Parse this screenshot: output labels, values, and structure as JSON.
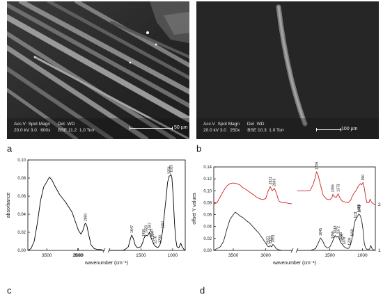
{
  "panels": {
    "a": {
      "letter": "a",
      "info_header": "Acc.V  Spot Magn      Det  WD",
      "info_values": "20.0 kV 3.0   600x      BSE 11.2  1.0 Torr",
      "scale_label": "50 µm"
    },
    "b": {
      "letter": "b",
      "info_header": "Acc.V  Spot Magn      Det  WD",
      "info_values": "20.0 kV 3.0   250x      BSE 10.3  1.0 Torr",
      "scale_label": "100 µm"
    },
    "c": {
      "letter": "c"
    },
    "d": {
      "letter": "d"
    }
  },
  "chart_data": [
    {
      "type": "line",
      "panel": "c",
      "xlabel": "wavenumber (cm⁻¹)",
      "ylabel": "absorbance",
      "xlim": [
        3800,
        800
      ],
      "ylim": [
        0,
        0.1
      ],
      "x_ticks": [
        3500,
        3000,
        2500,
        1500,
        1000
      ],
      "y_ticks": [
        "0.00",
        "0.02",
        "0.04",
        "0.06",
        "0.08",
        "0.10"
      ],
      "axis_break": [
        2600,
        2000
      ],
      "peak_labels": [
        "2890",
        "1647",
        "1456",
        "1420",
        "1367",
        "1335",
        "1314",
        "1278",
        "1200",
        "1157",
        "1054",
        "1025"
      ],
      "peak_positions": [
        2890,
        1647,
        1456,
        1420,
        1367,
        1335,
        1314,
        1278,
        1200,
        1157,
        1054,
        1025
      ],
      "series": [
        {
          "color": "#000000",
          "x": [
            3800,
            3750,
            3700,
            3650,
            3600,
            3550,
            3500,
            3460,
            3420,
            3380,
            3300,
            3200,
            3100,
            3000,
            2960,
            2930,
            2900,
            2890,
            2870,
            2840,
            2800,
            2750,
            2700,
            2650,
            2600
          ],
          "values": [
            0.0,
            0.002,
            0.01,
            0.03,
            0.055,
            0.07,
            0.076,
            0.081,
            0.078,
            0.072,
            0.062,
            0.053,
            0.042,
            0.022,
            0.018,
            0.022,
            0.029,
            0.03,
            0.028,
            0.018,
            0.006,
            0.002,
            0.001,
            0.001,
            0.0
          ]
        },
        {
          "color": "#000000",
          "x": [
            2000,
            1800,
            1750,
            1700,
            1670,
            1647,
            1620,
            1590,
            1560,
            1500,
            1470,
            1456,
            1440,
            1420,
            1400,
            1380,
            1367,
            1350,
            1335,
            1314,
            1300,
            1278,
            1260,
            1240,
            1220,
            1200,
            1180,
            1157,
            1130,
            1100,
            1080,
            1054,
            1035,
            1025,
            1010,
            990,
            970,
            950,
            930,
            900,
            870,
            850,
            820,
            800
          ],
          "values": [
            0.0,
            0.0,
            0.001,
            0.004,
            0.012,
            0.017,
            0.013,
            0.006,
            0.003,
            0.004,
            0.009,
            0.013,
            0.015,
            0.017,
            0.016,
            0.018,
            0.02,
            0.016,
            0.013,
            0.01,
            0.007,
            0.005,
            0.004,
            0.003,
            0.004,
            0.006,
            0.012,
            0.022,
            0.04,
            0.06,
            0.075,
            0.082,
            0.083,
            0.084,
            0.08,
            0.06,
            0.03,
            0.012,
            0.004,
            0.003,
            0.008,
            0.004,
            0.001,
            0.0
          ]
        }
      ]
    },
    {
      "type": "line",
      "panel": "d",
      "xlabel": "wavenumber (cm⁻¹)",
      "ylabel": "offset Y values",
      "xlim": [
        3800,
        800
      ],
      "ylim": [
        0,
        0.14
      ],
      "x_ticks": [
        3500,
        3000,
        1500,
        1000
      ],
      "y_ticks": [
        "0.00",
        "0.02",
        "0.04",
        "0.06",
        "0.08",
        "0.10",
        "0.12",
        "0.14"
      ],
      "axis_break": [
        2600,
        2000
      ],
      "top_peak_labels": [
        "2931",
        "2869",
        "1705",
        "1455",
        "1373",
        "990"
      ],
      "top_peak_positions": [
        2931,
        2869,
        1705,
        1455,
        1373,
        990
      ],
      "bottom_peak_labels": [
        "2970",
        "2932",
        "2891",
        "1645",
        "1455",
        "1418",
        "1372",
        "1335",
        "1315",
        "1278",
        "1200",
        "1158",
        "1111",
        "1055",
        "1043"
      ],
      "bottom_peak_positions": [
        2970,
        2932,
        2891,
        1645,
        1455,
        1418,
        1372,
        1335,
        1315,
        1278,
        1200,
        1158,
        1111,
        1055,
        1043
      ],
      "series": [
        {
          "name": "2",
          "color": "#d42020",
          "x": [
            3800,
            3750,
            3700,
            3650,
            3600,
            3550,
            3500,
            3450,
            3400,
            3350,
            3300,
            3250,
            3200,
            3150,
            3100,
            3050,
            3000,
            2970,
            2931,
            2900,
            2869,
            2850,
            2820,
            2800,
            2750,
            2700,
            2650,
            2600
          ],
          "values": [
            0.078,
            0.08,
            0.09,
            0.1,
            0.108,
            0.112,
            0.113,
            0.112,
            0.11,
            0.105,
            0.102,
            0.098,
            0.094,
            0.09,
            0.087,
            0.085,
            0.087,
            0.098,
            0.107,
            0.1,
            0.104,
            0.1,
            0.09,
            0.083,
            0.08,
            0.08,
            0.079,
            0.078
          ]
        },
        {
          "name": "2",
          "color": "#d42020",
          "x": [
            2000,
            1850,
            1800,
            1760,
            1730,
            1705,
            1680,
            1650,
            1600,
            1550,
            1500,
            1470,
            1455,
            1430,
            1400,
            1373,
            1350,
            1320,
            1300,
            1260,
            1220,
            1180,
            1150,
            1100,
            1060,
            1030,
            1010,
            990,
            970,
            950,
            930,
            900,
            880,
            860,
            830,
            800
          ],
          "values": [
            0.1,
            0.1,
            0.101,
            0.11,
            0.12,
            0.132,
            0.126,
            0.112,
            0.092,
            0.086,
            0.085,
            0.088,
            0.094,
            0.09,
            0.089,
            0.095,
            0.089,
            0.084,
            0.082,
            0.081,
            0.08,
            0.084,
            0.092,
            0.1,
            0.108,
            0.112,
            0.11,
            0.114,
            0.105,
            0.09,
            0.08,
            0.08,
            0.086,
            0.081,
            0.078,
            0.077
          ]
        },
        {
          "name": "1",
          "color": "#222222",
          "x": [
            3800,
            3750,
            3700,
            3650,
            3600,
            3550,
            3500,
            3470,
            3440,
            3400,
            3350,
            3300,
            3250,
            3200,
            3150,
            3100,
            3050,
            3000,
            2970,
            2950,
            2932,
            2910,
            2891,
            2870,
            2840,
            2800,
            2750,
            2700,
            2650,
            2600
          ],
          "values": [
            0.0,
            0.003,
            0.006,
            0.015,
            0.035,
            0.052,
            0.06,
            0.064,
            0.062,
            0.058,
            0.055,
            0.05,
            0.046,
            0.04,
            0.034,
            0.028,
            0.02,
            0.012,
            0.007,
            0.006,
            0.008,
            0.006,
            0.01,
            0.008,
            0.003,
            0.001,
            0.0,
            0.0,
            0.0,
            0.0
          ]
        },
        {
          "name": "1",
          "color": "#222222",
          "x": [
            2000,
            1800,
            1720,
            1680,
            1645,
            1610,
            1580,
            1540,
            1500,
            1470,
            1455,
            1440,
            1418,
            1400,
            1372,
            1350,
            1335,
            1315,
            1295,
            1278,
            1250,
            1220,
            1200,
            1180,
            1158,
            1130,
            1111,
            1090,
            1070,
            1055,
            1043,
            1030,
            1010,
            990,
            970,
            950,
            930,
            910,
            890,
            870,
            850,
            830,
            800
          ],
          "values": [
            0.0,
            0.0,
            0.003,
            0.012,
            0.021,
            0.016,
            0.008,
            0.004,
            0.006,
            0.012,
            0.016,
            0.02,
            0.025,
            0.022,
            0.024,
            0.018,
            0.014,
            0.011,
            0.008,
            0.006,
            0.004,
            0.003,
            0.005,
            0.01,
            0.02,
            0.04,
            0.05,
            0.054,
            0.058,
            0.061,
            0.06,
            0.058,
            0.05,
            0.035,
            0.012,
            0.004,
            0.002,
            0.002,
            0.002,
            0.008,
            0.003,
            0.001,
            0.0
          ]
        }
      ]
    }
  ]
}
